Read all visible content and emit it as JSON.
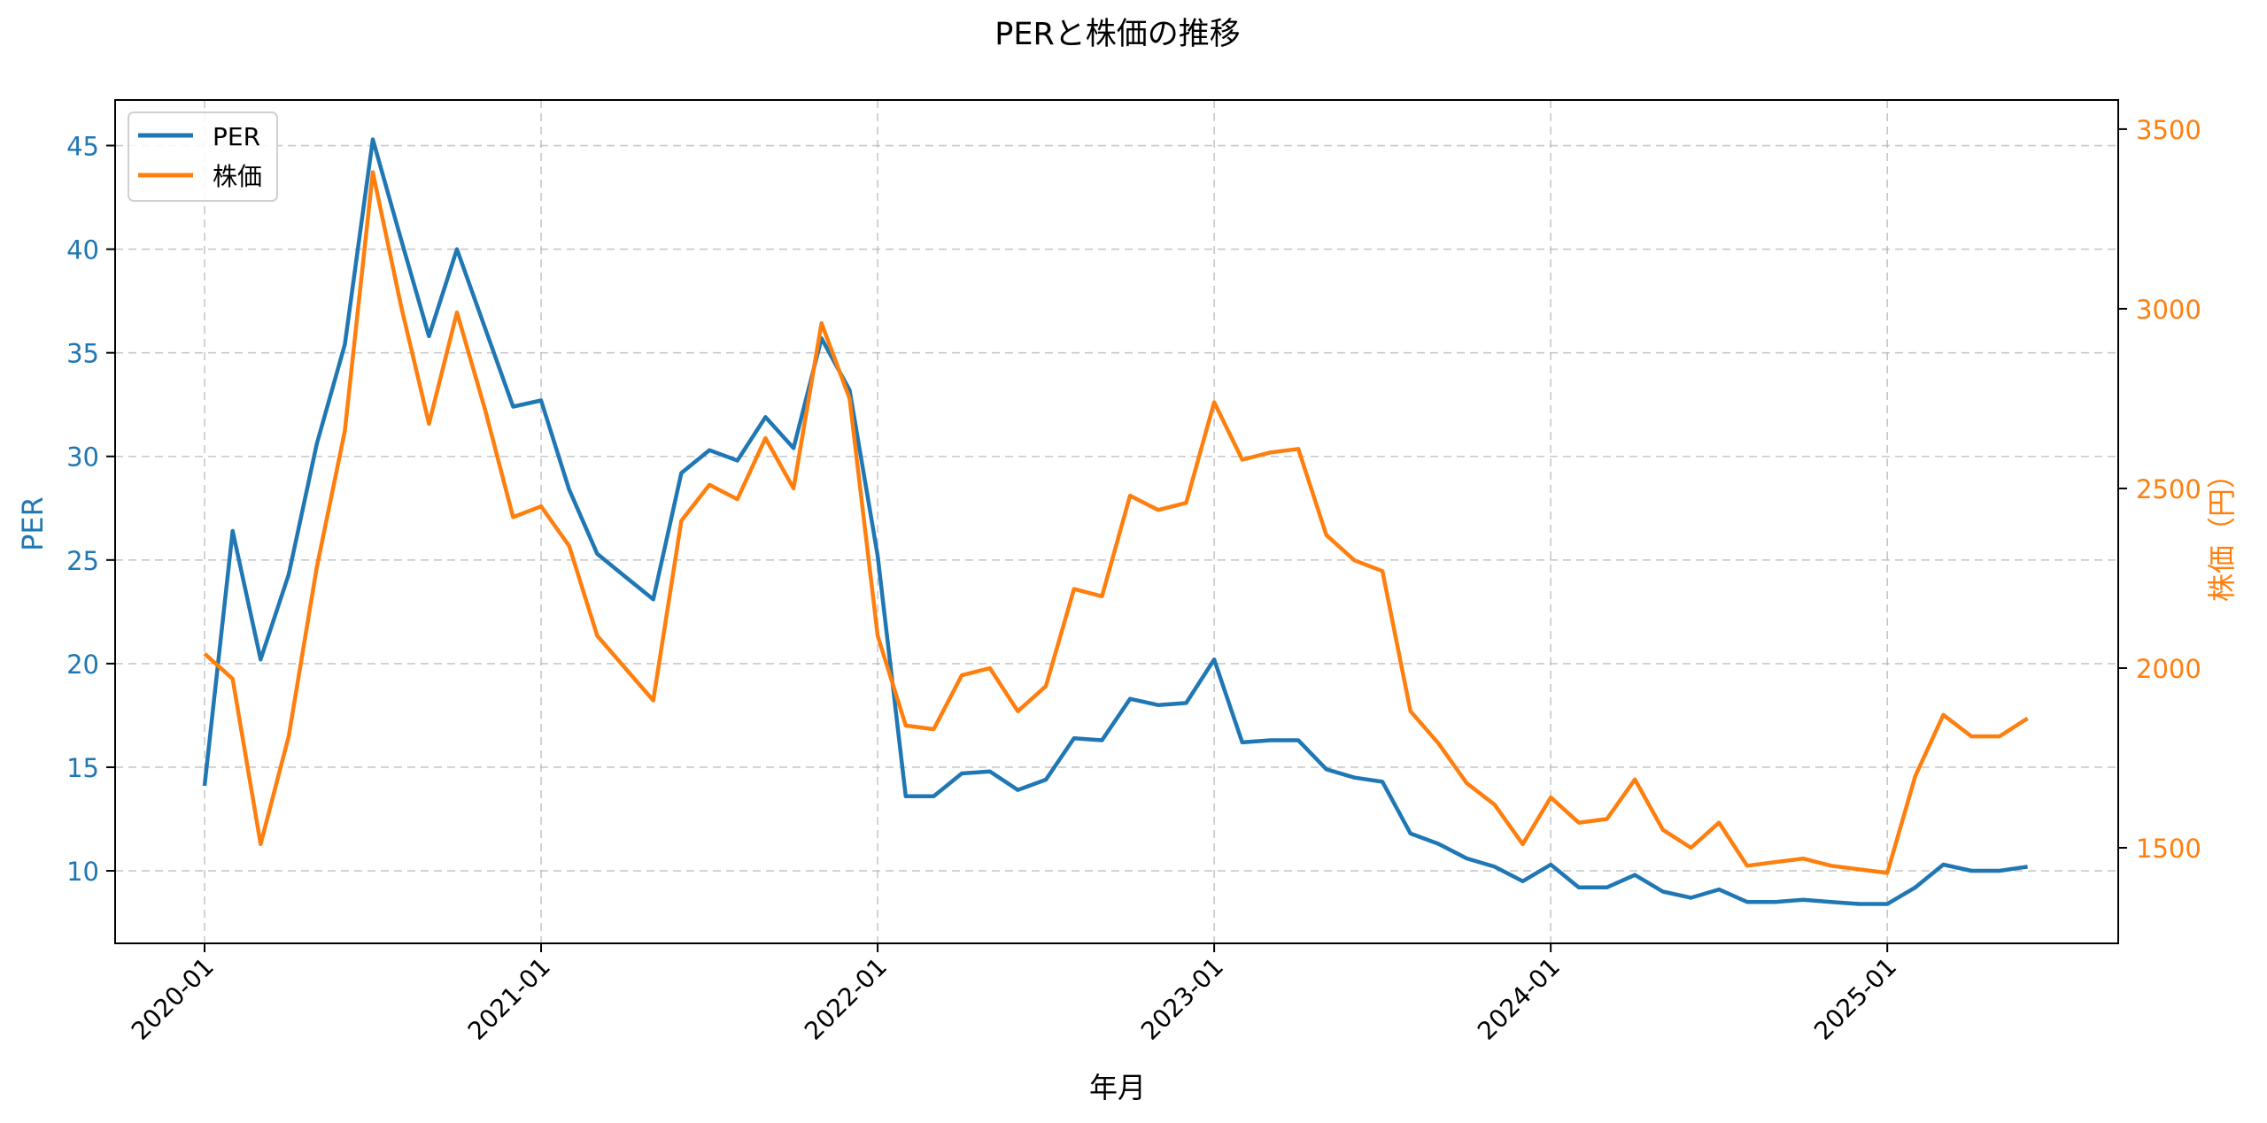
{
  "chart_data": {
    "type": "line",
    "title": "PERと株価の推移",
    "xlabel": "年月",
    "ylabel_left": "PER",
    "ylabel_right": "株価（円）",
    "colors": {
      "PER": "#1f77b4",
      "price": "#ff7f0e",
      "grid": "#b0b0b0",
      "axis": "#000000"
    },
    "xtick_labels": [
      "2020-01",
      "2021-01",
      "2022-01",
      "2023-01",
      "2024-01",
      "2025-01"
    ],
    "xtick_index": [
      0,
      12,
      24,
      36,
      48,
      60
    ],
    "yticks_left": [
      10,
      15,
      20,
      25,
      30,
      35,
      40,
      45
    ],
    "yticks_right": [
      1500,
      2000,
      2500,
      3000,
      3500
    ],
    "ylim_left": [
      6.5,
      47.2
    ],
    "ylim_right": [
      1234,
      3581
    ],
    "grid": true,
    "legend": {
      "position": "upper left",
      "entries": [
        "PER",
        "株価"
      ]
    },
    "x": [
      "2020-01",
      "2020-02",
      "2020-03",
      "2020-04",
      "2020-05",
      "2020-06",
      "2020-07",
      "2020-08",
      "2020-09",
      "2020-10",
      "2020-11",
      "2020-12",
      "2021-01",
      "2021-02",
      "2021-03",
      "2021-04",
      "2021-05",
      "2021-06",
      "2021-07",
      "2021-08",
      "2021-09",
      "2021-10",
      "2021-11",
      "2021-12",
      "2022-01",
      "2022-02",
      "2022-03",
      "2022-04",
      "2022-05",
      "2022-06",
      "2022-07",
      "2022-08",
      "2022-09",
      "2022-10",
      "2022-11",
      "2022-12",
      "2023-01",
      "2023-02",
      "2023-03",
      "2023-04",
      "2023-05",
      "2023-06",
      "2023-07",
      "2023-08",
      "2023-09",
      "2023-10",
      "2023-11",
      "2023-12",
      "2024-01",
      "2024-02",
      "2024-03",
      "2024-04",
      "2024-05",
      "2024-06",
      "2024-07",
      "2024-08",
      "2024-09",
      "2024-10",
      "2024-11",
      "2024-12",
      "2025-01",
      "2025-02",
      "2025-03",
      "2025-04",
      "2025-05",
      "2025-06"
    ],
    "series": [
      {
        "name": "PER",
        "axis": "left",
        "values": [
          14.1,
          26.4,
          20.2,
          24.3,
          30.6,
          35.4,
          45.3,
          40.5,
          35.8,
          40.0,
          36.2,
          32.4,
          32.7,
          28.4,
          25.3,
          24.2,
          23.1,
          29.2,
          30.3,
          29.8,
          31.9,
          30.4,
          35.7,
          33.2,
          25.2,
          13.6,
          13.6,
          14.7,
          14.8,
          13.9,
          14.4,
          16.4,
          16.3,
          18.3,
          18.0,
          18.1,
          20.2,
          16.2,
          16.3,
          16.3,
          14.9,
          14.5,
          14.3,
          11.8,
          11.3,
          10.6,
          10.2,
          9.5,
          10.3,
          9.2,
          9.2,
          9.8,
          9.0,
          8.7,
          9.1,
          8.5,
          8.5,
          8.6,
          8.5,
          8.4,
          8.4,
          9.2,
          10.3,
          10.0,
          10.0,
          10.2
        ]
      },
      {
        "name": "株価",
        "axis": "right",
        "values": [
          2040,
          1970,
          1510,
          1810,
          2280,
          2660,
          3380,
          3010,
          2680,
          2990,
          2720,
          2420,
          2450,
          2340,
          2090,
          2000,
          1910,
          2410,
          2510,
          2470,
          2640,
          2500,
          2960,
          2750,
          2090,
          1840,
          1830,
          1980,
          2000,
          1880,
          1950,
          2220,
          2200,
          2480,
          2440,
          2460,
          2740,
          2580,
          2600,
          2610,
          2370,
          2300,
          2270,
          1880,
          1790,
          1680,
          1620,
          1510,
          1640,
          1570,
          1580,
          1690,
          1550,
          1500,
          1570,
          1450,
          1460,
          1470,
          1450,
          1440,
          1430,
          1700,
          1870,
          1810,
          1810,
          1860
        ]
      }
    ]
  }
}
